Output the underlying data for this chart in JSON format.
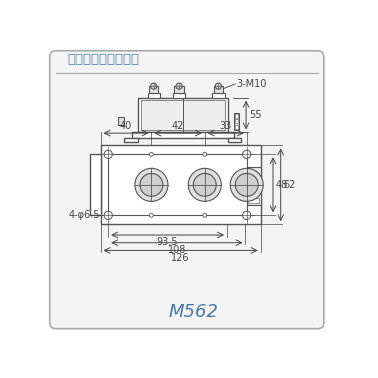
{
  "title": "模块外型图、安装图",
  "model": "M562",
  "line_color": "#555555",
  "dim_color": "#444444",
  "title_color": "#5588aa",
  "model_color": "#4477aa",
  "annotation_3M10": "3-M10",
  "ann_55": "55",
  "ann_40": "40",
  "ann_42": "42",
  "ann_33": "33",
  "ann_48": "48",
  "ann_62": "62",
  "ann_4phi65": "4-φ6.5",
  "ann_935": "93.5",
  "ann_108": "108",
  "ann_126": "126",
  "scale": 1.65
}
